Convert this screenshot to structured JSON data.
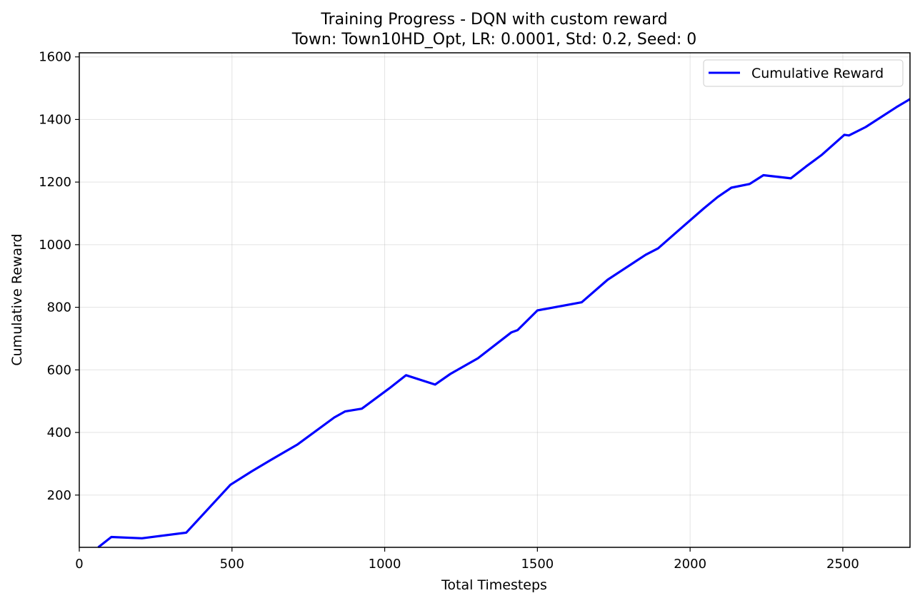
{
  "chart_data": {
    "type": "line",
    "title": "Training Progress - DQN with custom reward",
    "subtitle": "Town: Town10HD_Opt, LR: 0.0001, Std: 0.2, Seed: 0",
    "xlabel": "Total Timesteps",
    "ylabel": "Cumulative Reward",
    "xlim": [
      0,
      2720
    ],
    "ylim": [
      33,
      1613
    ],
    "xticks": [
      0,
      500,
      1000,
      1500,
      2000,
      2500
    ],
    "yticks": [
      200,
      400,
      600,
      800,
      1000,
      1200,
      1400,
      1600
    ],
    "grid": true,
    "legend_position": "top-right",
    "series": [
      {
        "name": "Cumulative Reward",
        "color": "#0000ff",
        "x": [
          62,
          105,
          205,
          350,
          495,
          565,
          625,
          715,
          835,
          870,
          925,
          1015,
          1070,
          1165,
          1215,
          1305,
          1415,
          1435,
          1500,
          1645,
          1730,
          1855,
          1895,
          1965,
          2045,
          2090,
          2135,
          2195,
          2240,
          2330,
          2380,
          2430,
          2505,
          2520,
          2575,
          2675,
          2720
        ],
        "y": [
          33,
          66,
          62,
          80,
          233,
          276,
          311,
          362,
          448,
          467,
          476,
          541,
          583,
          553,
          587,
          637,
          720,
          727,
          790,
          816,
          888,
          968,
          988,
          1048,
          1116,
          1152,
          1182,
          1194,
          1222,
          1212,
          1250,
          1286,
          1351,
          1349,
          1376,
          1439,
          1465
        ]
      }
    ]
  }
}
